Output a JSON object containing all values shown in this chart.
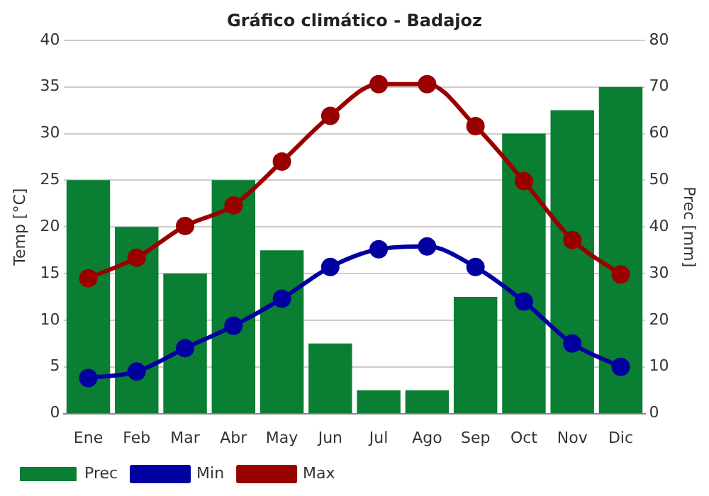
{
  "chart_data": {
    "type": "line",
    "title": "Gráfico climático - Badajoz",
    "ylabel": "Temp [°C]",
    "y2label": "Prec [mm]",
    "categories": [
      "Ene",
      "Feb",
      "Mar",
      "Abr",
      "May",
      "Jun",
      "Jul",
      "Ago",
      "Sep",
      "Oct",
      "Nov",
      "Dic"
    ],
    "series": [
      {
        "name": "Prec",
        "type": "bar",
        "axis": "y2",
        "color": "#0a7e32",
        "values": [
          50,
          40,
          30,
          50,
          35,
          15,
          5,
          5,
          25,
          60,
          65,
          70
        ]
      },
      {
        "name": "Min",
        "color": "#0000a0",
        "values": [
          3.8,
          4.5,
          7.0,
          9.4,
          12.3,
          15.7,
          17.6,
          17.9,
          15.7,
          12.0,
          7.5,
          5.0
        ]
      },
      {
        "name": "Max",
        "color": "#990000",
        "values": [
          14.5,
          16.7,
          20.1,
          22.3,
          27.0,
          31.9,
          35.3,
          35.3,
          30.8,
          24.9,
          18.6,
          14.9
        ]
      }
    ],
    "ylim": [
      0,
      40
    ],
    "yticks": [
      0,
      5,
      10,
      15,
      20,
      25,
      30,
      35,
      40
    ],
    "y2lim": [
      0,
      80
    ],
    "y2ticks": [
      0,
      10,
      20,
      30,
      40,
      50,
      60,
      70,
      80
    ],
    "grid": "y",
    "legend": "bottom left",
    "marker": "circle",
    "line_style": "solid"
  }
}
